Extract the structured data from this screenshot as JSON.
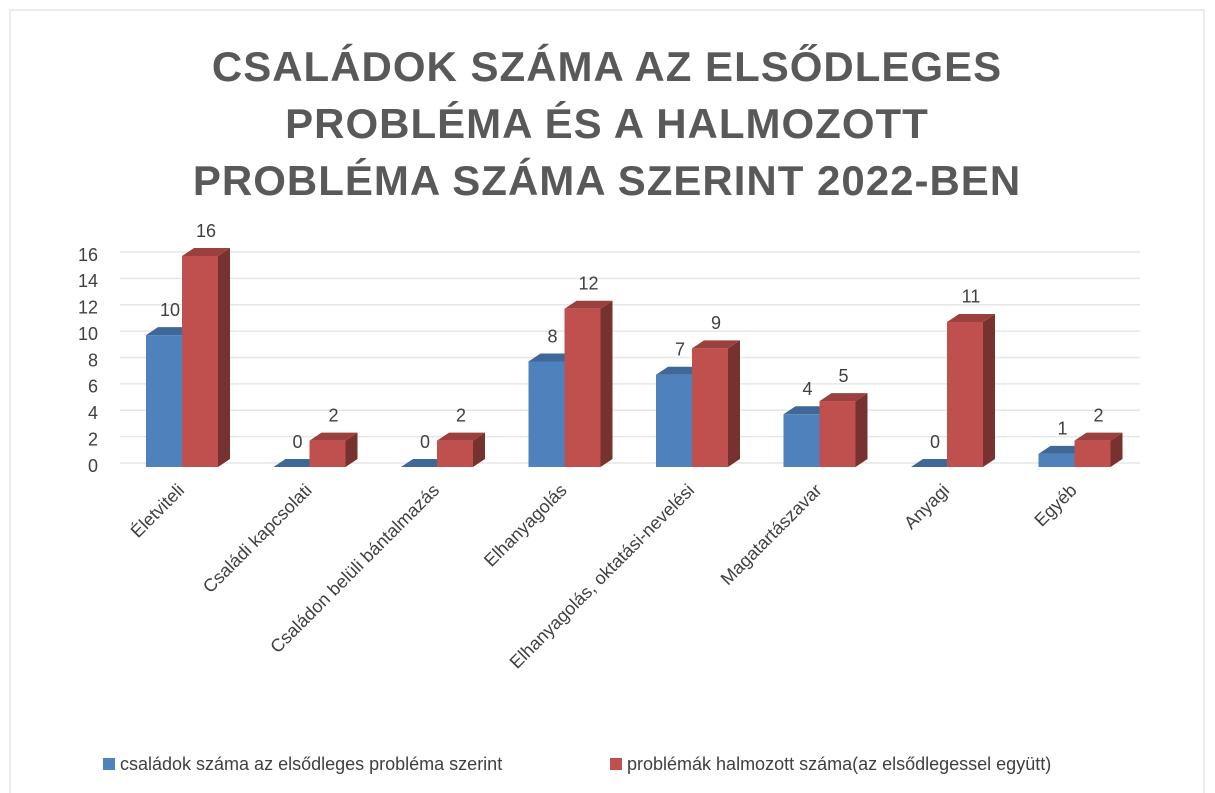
{
  "chart_data": {
    "type": "bar3d",
    "title": "CSALÁDOK SZÁMA AZ ELSŐDLEGES PROBLÉMA ÉS A HALMOZOTT PROBLÉMA SZÁMA SZERINT 2022-BEN",
    "categories": [
      "Életviteli",
      "Családi kapcsolati",
      "Családon belüli bántalmazás",
      "Elhanyagolás",
      "Elhanyagolás, oktatási-nevelési",
      "Magatartászavar",
      "Anyagi",
      "Egyéb"
    ],
    "series": [
      {
        "name": "családok száma az elsődleges probléma szerint",
        "color": "#4f81bd",
        "values": [
          10,
          0,
          0,
          8,
          7,
          4,
          0,
          1
        ]
      },
      {
        "name": "problémák halmozott száma(az elsődlegessel együtt)",
        "color": "#c0504d",
        "values": [
          16,
          2,
          2,
          12,
          9,
          5,
          11,
          2
        ]
      }
    ],
    "ylim": [
      0,
      16
    ],
    "yticks": [
      0,
      2,
      4,
      6,
      8,
      10,
      12,
      14,
      16
    ],
    "grid": true,
    "legend": "bottom"
  }
}
